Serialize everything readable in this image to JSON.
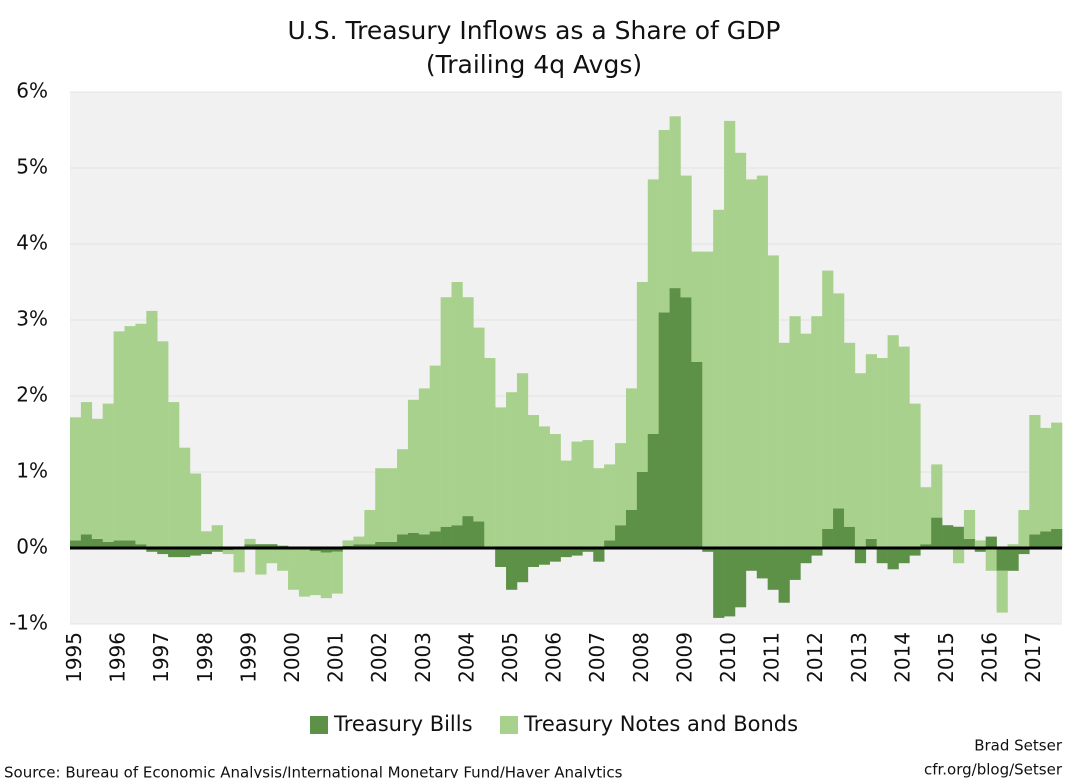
{
  "chart_data": {
    "type": "stacked-bar",
    "title": "U.S. Treasury Inflows as a Share of GDP",
    "subtitle": "(Trailing 4q Avgs)",
    "categories": [
      "1995",
      null,
      null,
      null,
      "1996",
      null,
      null,
      null,
      "1997",
      null,
      null,
      null,
      "1998",
      null,
      null,
      null,
      "1999",
      null,
      null,
      null,
      "2000",
      null,
      null,
      null,
      "2001",
      null,
      null,
      null,
      "2002",
      null,
      null,
      null,
      "2003",
      null,
      null,
      null,
      "2004",
      null,
      null,
      null,
      "2005",
      null,
      null,
      null,
      "2006",
      null,
      null,
      null,
      "2007",
      null,
      null,
      null,
      "2008",
      null,
      null,
      null,
      "2009",
      null,
      null,
      null,
      "2010",
      null,
      null,
      null,
      "2011",
      null,
      null,
      null,
      "2012",
      null,
      null,
      null,
      "2013",
      null,
      null,
      null,
      "2014",
      null,
      null,
      null,
      "2015",
      null,
      null,
      null,
      "2016",
      null,
      null,
      null,
      "2017",
      null,
      null
    ],
    "series": [
      {
        "name": "Treasury Bills",
        "color": "#5e9148",
        "values": [
          0.1,
          0.18,
          0.12,
          0.08,
          0.1,
          0.1,
          0.05,
          -0.05,
          -0.08,
          -0.12,
          -0.12,
          -0.1,
          -0.08,
          -0.05,
          -0.03,
          -0.02,
          0.05,
          0.05,
          0.05,
          0.03,
          0.02,
          -0.02,
          -0.04,
          -0.06,
          -0.05,
          0.03,
          0.05,
          0.05,
          0.08,
          0.08,
          0.18,
          0.2,
          0.18,
          0.22,
          0.28,
          0.3,
          0.42,
          0.35,
          0.02,
          -0.25,
          -0.55,
          -0.45,
          -0.25,
          -0.22,
          -0.18,
          -0.12,
          -0.1,
          -0.05,
          -0.18,
          0.1,
          0.3,
          0.5,
          1.0,
          1.5,
          3.1,
          3.42,
          3.3,
          2.45,
          -0.05,
          -0.92,
          -0.9,
          -0.78,
          -0.3,
          -0.4,
          -0.55,
          -0.72,
          -0.42,
          -0.2,
          -0.1,
          0.25,
          0.52,
          0.28,
          -0.2,
          0.12,
          -0.2,
          -0.28,
          -0.2,
          -0.1,
          0.05,
          0.4,
          0.3,
          0.28,
          0.12,
          -0.05,
          0.15,
          -0.3,
          -0.3,
          -0.08,
          0.18,
          0.22,
          0.25
        ]
      },
      {
        "name": "Treasury Notes and Bonds",
        "color": "#a9d18e",
        "values": [
          1.62,
          1.74,
          1.58,
          1.82,
          2.75,
          2.82,
          2.9,
          3.12,
          2.72,
          1.92,
          1.32,
          0.98,
          0.22,
          0.3,
          -0.05,
          -0.3,
          0.07,
          -0.35,
          -0.2,
          -0.3,
          -0.55,
          -0.62,
          -0.58,
          -0.6,
          -0.55,
          0.07,
          0.1,
          0.45,
          0.97,
          0.97,
          1.12,
          1.75,
          1.92,
          2.18,
          3.02,
          3.2,
          2.88,
          2.55,
          2.48,
          1.85,
          2.05,
          2.3,
          1.75,
          1.6,
          1.5,
          1.15,
          1.4,
          1.42,
          1.05,
          1.0,
          1.08,
          1.6,
          2.5,
          3.35,
          2.4,
          2.26,
          1.6,
          1.45,
          3.9,
          4.45,
          5.62,
          5.2,
          4.85,
          4.9,
          3.85,
          2.7,
          3.05,
          2.82,
          3.05,
          3.4,
          2.83,
          2.42,
          2.3,
          2.43,
          2.5,
          2.8,
          2.65,
          1.9,
          0.75,
          0.7,
          0.0,
          -0.2,
          0.38,
          0.1,
          -0.3,
          -0.55,
          0.05,
          0.5,
          1.57,
          1.36,
          1.4
        ]
      }
    ],
    "ylim": [
      -1,
      6
    ],
    "yticks": [
      {
        "value": -1,
        "label": "-1%"
      },
      {
        "value": 0,
        "label": "0%"
      },
      {
        "value": 1,
        "label": "1%"
      },
      {
        "value": 2,
        "label": "2%"
      },
      {
        "value": 3,
        "label": "3%"
      },
      {
        "value": 4,
        "label": "4%"
      },
      {
        "value": 5,
        "label": "5%"
      },
      {
        "value": 6,
        "label": "6%"
      }
    ],
    "legend": "bottom",
    "source": "Source: Bureau of Economic Analysis/International Monetary Fund/Haver Analytics",
    "author": "Brad Setser",
    "website": "cfr.org/blog/Setser"
  }
}
